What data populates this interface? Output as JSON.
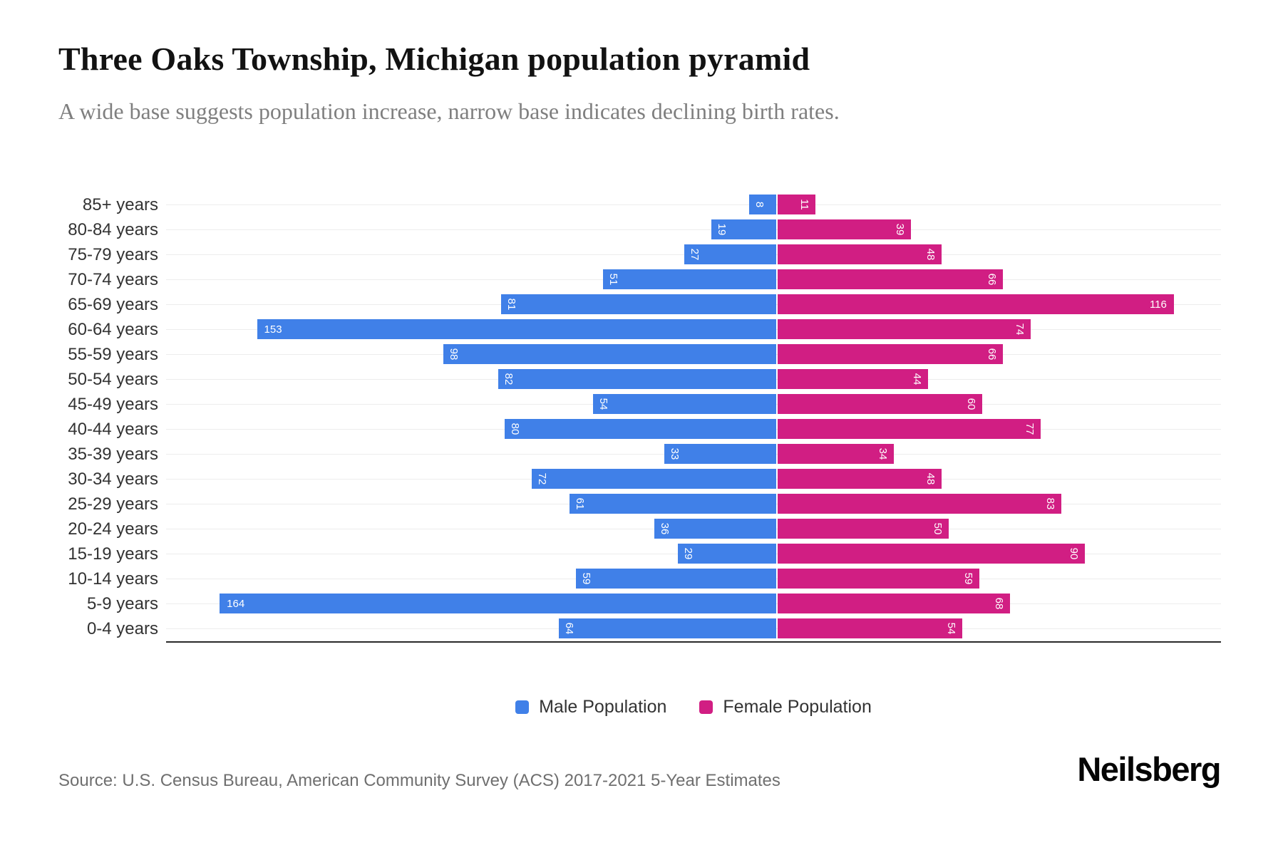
{
  "header": {
    "title": "Three Oaks Township, Michigan population pyramid",
    "subtitle": "A wide base suggests population increase, narrow base indicates declining birth rates."
  },
  "chart_data": {
    "type": "bar",
    "variant": "population-pyramid",
    "title": "Three Oaks Township, Michigan population pyramid",
    "categories": [
      "85+ years",
      "80-84 years",
      "75-79 years",
      "70-74 years",
      "65-69 years",
      "60-64 years",
      "55-59 years",
      "50-54 years",
      "45-49 years",
      "40-44 years",
      "35-39 years",
      "30-34 years",
      "25-29 years",
      "20-24 years",
      "15-19 years",
      "10-14 years",
      "5-9 years",
      "0-4 years"
    ],
    "series": [
      {
        "name": "Male Population",
        "side": "left",
        "color": "#4080E8",
        "values": [
          8,
          19,
          27,
          51,
          81,
          153,
          98,
          82,
          54,
          80,
          33,
          72,
          61,
          36,
          29,
          59,
          164,
          64
        ]
      },
      {
        "name": "Female Population",
        "side": "right",
        "color": "#D11E83",
        "values": [
          11,
          39,
          48,
          66,
          116,
          74,
          66,
          44,
          60,
          77,
          34,
          48,
          83,
          50,
          90,
          59,
          68,
          54
        ]
      }
    ],
    "xlim_male": [
      0,
      180
    ],
    "xlim_female": [
      0,
      130
    ],
    "grid": "horizontal-light",
    "gridline_color": "#ededed",
    "axis_line_color": "#2a2a2a",
    "value_label_color": "#ffffff",
    "legend_position": "bottom-center"
  },
  "legend": {
    "male_label": "Male Population",
    "female_label": "Female Population"
  },
  "footer": {
    "source": "Source: U.S. Census Bureau, American Community Survey (ACS) 2017-2021 5-Year Estimates",
    "logo": "Neilsberg"
  }
}
